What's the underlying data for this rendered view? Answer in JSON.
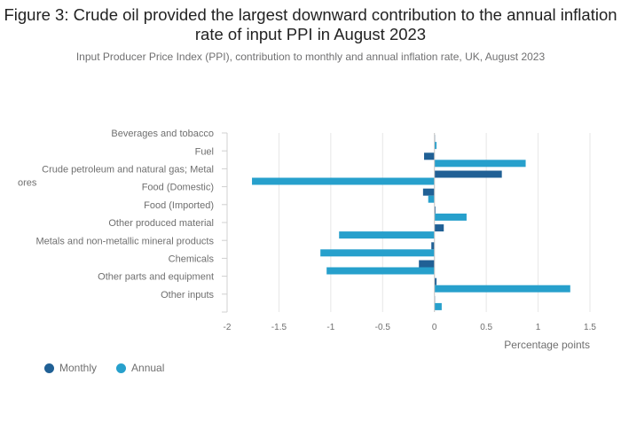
{
  "title": "Figure 3: Crude oil provided the largest downward contribution to the annual inflation rate of input PPI in August 2023",
  "subtitle": "Input Producer Price Index (PPI), contribution to monthly and annual inflation rate, UK, August 2023",
  "colors": {
    "monthly": "#206095",
    "annual": "#27a0cc",
    "grid": "#e6e6e6"
  },
  "chart_data": {
    "type": "bar",
    "orientation": "horizontal",
    "xlabel": "Percentage points",
    "xlim": [
      -2,
      1.5
    ],
    "xticks": [
      -2,
      -1.5,
      -1,
      -0.5,
      0,
      0.5,
      1,
      1.5
    ],
    "xtick_labels": [
      "-2",
      "-1.5",
      "-1",
      "-0.5",
      "0",
      "0.5",
      "1",
      "1.5"
    ],
    "grid": true,
    "legend_position": "bottom-left",
    "categories": [
      "Beverages and tobacco",
      "Fuel",
      "Crude petroleum and natural gas; Metal ores",
      "Food (Domestic)",
      "Food (Imported)",
      "Other produced material",
      "Metals and non-metallic mineral products",
      "Chemicals",
      "Other parts and equipment",
      "Other inputs"
    ],
    "category_lines": [
      [
        "Beverages and tobacco"
      ],
      [
        "Fuel"
      ],
      [
        "Crude petroleum and natural gas; Metal",
        "ores"
      ],
      [
        "Food (Domestic)"
      ],
      [
        "Food (Imported)"
      ],
      [
        "Other produced material"
      ],
      [
        "Metals and non-metallic mineral products"
      ],
      [
        "Chemicals"
      ],
      [
        "Other parts and equipment"
      ],
      [
        "Other inputs"
      ]
    ],
    "series": [
      {
        "name": "Monthly",
        "values": [
          0.0,
          -0.1,
          0.65,
          -0.11,
          0.01,
          0.09,
          -0.03,
          -0.15,
          0.02,
          0.0
        ]
      },
      {
        "name": "Annual",
        "values": [
          0.02,
          0.88,
          -1.76,
          -0.06,
          0.31,
          -0.92,
          -1.1,
          -1.04,
          1.31,
          0.07
        ]
      }
    ]
  }
}
